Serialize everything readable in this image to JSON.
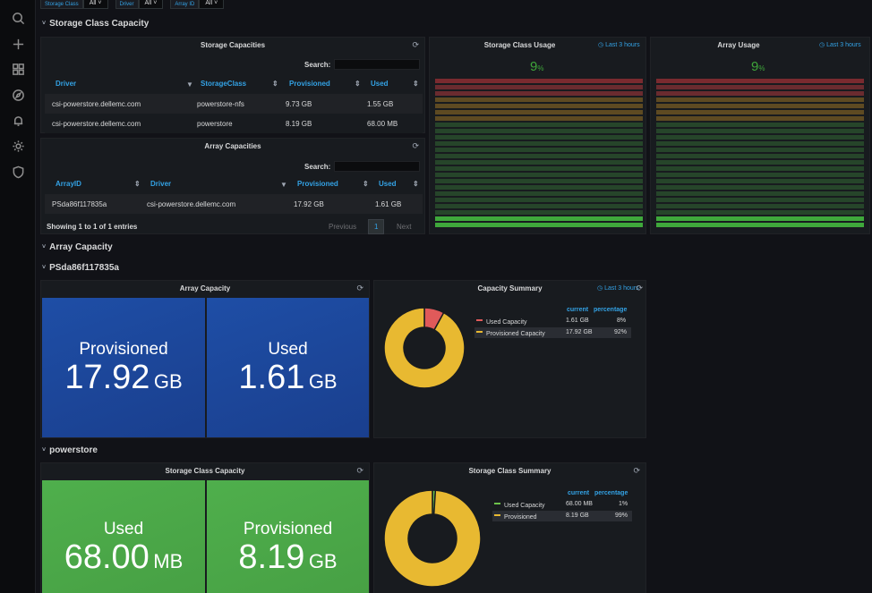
{
  "variables": [
    {
      "label": "Storage Class",
      "value": "All"
    },
    {
      "label": "Driver",
      "value": "All"
    },
    {
      "label": "Array ID",
      "value": "All"
    }
  ],
  "rows": {
    "storage_class_capacity": "Storage Class Capacity",
    "array_capacity": "Array Capacity",
    "array_id": "PSda86f117835a",
    "storage_class": "powerstore"
  },
  "storage_capacities": {
    "title": "Storage Capacities",
    "search_label": "Search:",
    "columns": [
      "Driver",
      "StorageClass",
      "Provisioned",
      "Used"
    ],
    "rows": [
      [
        "csi-powerstore.dellemc.com",
        "powerstore-nfs",
        "9.73 GB",
        "1.55 GB"
      ],
      [
        "csi-powerstore.dellemc.com",
        "powerstore",
        "8.19 GB",
        "68.00 MB"
      ]
    ]
  },
  "array_capacities": {
    "title": "Array Capacities",
    "search_label": "Search:",
    "columns": [
      "ArrayID",
      "Driver",
      "Provisioned",
      "Used"
    ],
    "rows": [
      [
        "PSda86f117835a",
        "csi-powerstore.dellemc.com",
        "17.92 GB",
        "1.61 GB"
      ]
    ],
    "info": "Showing 1 to 1 of 1 entries",
    "previous": "Previous",
    "page": "1",
    "next": "Next"
  },
  "storage_class_usage": {
    "title": "Storage Class Usage",
    "time": "Last 3 hours",
    "value": "9",
    "unit": "%",
    "fill_fraction": 0.09
  },
  "array_usage": {
    "title": "Array Usage",
    "time": "Last 3 hours",
    "value": "9",
    "unit": "%",
    "fill_fraction": 0.09
  },
  "array_capacity_panel": {
    "title": "Array Capacity",
    "provisioned": {
      "label": "Provisioned",
      "value": "17.92",
      "unit": "GB",
      "color": "#1f4fa8"
    },
    "used": {
      "label": "Used",
      "value": "1.61",
      "unit": "GB",
      "color": "#1f4fa8"
    }
  },
  "capacity_summary": {
    "title": "Capacity Summary",
    "time": "Last 3 hours",
    "headers": {
      "current": "current",
      "percentage": "percentage"
    },
    "items": [
      {
        "name": "Used Capacity",
        "current": "1.61 GB",
        "percentage": "8%",
        "pct": 8,
        "color": "#e05a5a"
      },
      {
        "name": "Provisioned Capacity",
        "current": "17.92 GB",
        "percentage": "92%",
        "pct": 92,
        "color": "#e8b931"
      }
    ]
  },
  "storage_class_capacity_panel": {
    "title": "Storage Class Capacity",
    "used": {
      "label": "Used",
      "value": "68.00",
      "unit": "MB",
      "color": "#4ea64a"
    },
    "provisioned": {
      "label": "Provisioned",
      "value": "8.19",
      "unit": "GB",
      "color": "#4ea64a"
    }
  },
  "storage_class_summary": {
    "title": "Storage Class Summary",
    "headers": {
      "current": "current",
      "percentage": "percentage"
    },
    "items": [
      {
        "name": "Used Capacity",
        "current": "68.00 MB",
        "percentage": "1%",
        "pct": 1,
        "color": "#6cc24a"
      },
      {
        "name": "Provisioned",
        "current": "8.19 GB",
        "percentage": "99%",
        "pct": 99,
        "color": "#e8b931"
      }
    ]
  },
  "sidebar": {
    "icons": [
      "search-icon",
      "plus-icon",
      "dashboards-icon",
      "explore-icon",
      "alerting-icon",
      "gear-icon",
      "shield-icon"
    ]
  }
}
